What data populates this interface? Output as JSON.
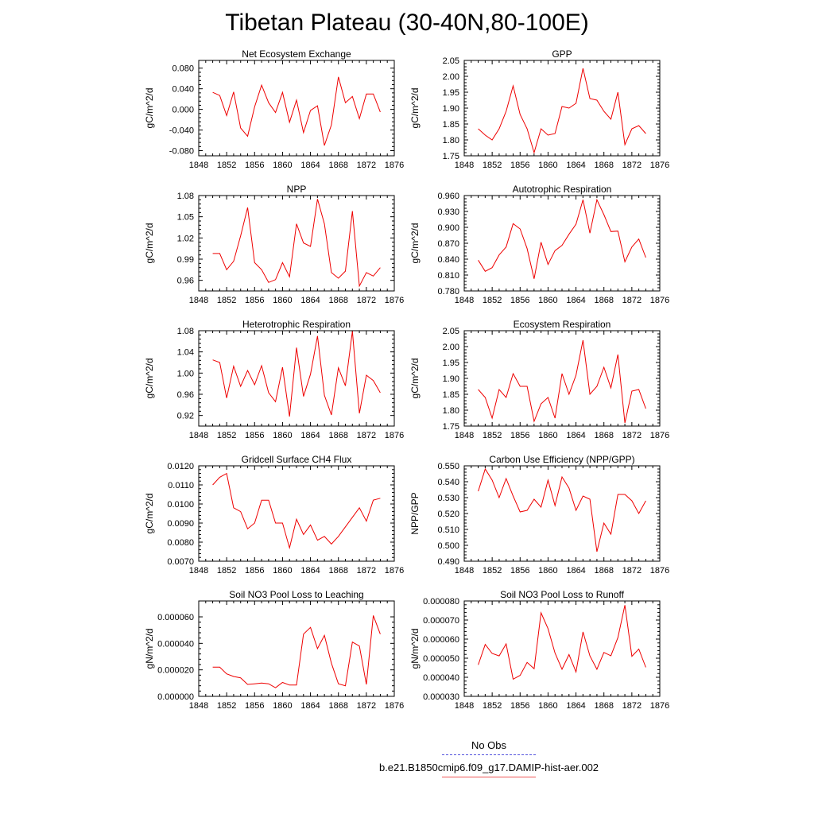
{
  "page": {
    "title": "Tibetan Plateau (30-40N,80-100E)"
  },
  "legend": {
    "obs_label": "No Obs",
    "model_label": "b.e21.B1850cmip6.f09_g17.DAMIP-hist-aer.002",
    "obs_color": "#5555dd",
    "model_color": "#ee0000"
  },
  "chart_data": [
    {
      "type": "line",
      "title": "Net Ecosystem Exchange",
      "ylabel": "gC/m^2/d",
      "xlim": [
        1848,
        1876
      ],
      "xticks": [
        "1848",
        "1852",
        "1856",
        "1860",
        "1864",
        "1868",
        "1872",
        "1876"
      ],
      "ylim": [
        -0.09,
        0.095
      ],
      "yticks": [
        {
          "v": -0.08,
          "label": "-0.080"
        },
        {
          "v": -0.04,
          "label": "-0.040"
        },
        {
          "v": 0.0,
          "label": "0.000"
        },
        {
          "v": 0.04,
          "label": "0.040"
        },
        {
          "v": 0.08,
          "label": "0.080"
        }
      ],
      "x": [
        1850,
        1851,
        1852,
        1853,
        1854,
        1855,
        1856,
        1857,
        1858,
        1859,
        1860,
        1861,
        1862,
        1863,
        1864,
        1865,
        1866,
        1867,
        1868,
        1869,
        1870,
        1871,
        1872,
        1873,
        1874
      ],
      "series": [
        {
          "color": "#ee0000",
          "values": [
            0.033,
            0.027,
            -0.012,
            0.034,
            -0.036,
            -0.052,
            0.005,
            0.047,
            0.013,
            -0.006,
            0.033,
            -0.025,
            0.018,
            -0.045,
            -0.002,
            0.007,
            -0.07,
            -0.03,
            0.063,
            0.013,
            0.025,
            -0.018,
            0.03,
            0.03,
            -0.005
          ]
        }
      ]
    },
    {
      "type": "line",
      "title": "GPP",
      "ylabel": "gC/m^2/d",
      "xlim": [
        1848,
        1876
      ],
      "xticks": [
        "1848",
        "1852",
        "1856",
        "1860",
        "1864",
        "1868",
        "1872",
        "1876"
      ],
      "ylim": [
        1.75,
        2.05
      ],
      "yticks": [
        {
          "v": 1.75,
          "label": "1.75"
        },
        {
          "v": 1.8,
          "label": "1.80"
        },
        {
          "v": 1.85,
          "label": "1.85"
        },
        {
          "v": 1.9,
          "label": "1.90"
        },
        {
          "v": 1.95,
          "label": "1.95"
        },
        {
          "v": 2.0,
          "label": "2.00"
        },
        {
          "v": 2.05,
          "label": "2.05"
        }
      ],
      "x": [
        1850,
        1851,
        1852,
        1853,
        1854,
        1855,
        1856,
        1857,
        1858,
        1859,
        1860,
        1861,
        1862,
        1863,
        1864,
        1865,
        1866,
        1867,
        1868,
        1869,
        1870,
        1871,
        1872,
        1873,
        1874
      ],
      "series": [
        {
          "color": "#ee0000",
          "values": [
            1.835,
            1.815,
            1.8,
            1.835,
            1.89,
            1.97,
            1.88,
            1.835,
            1.76,
            1.835,
            1.815,
            1.82,
            1.905,
            1.9,
            1.915,
            2.025,
            1.93,
            1.925,
            1.89,
            1.865,
            1.95,
            1.785,
            1.835,
            1.845,
            1.82
          ]
        }
      ]
    },
    {
      "type": "line",
      "title": "NPP",
      "ylabel": "gC/m^2/d",
      "xlim": [
        1848,
        1876
      ],
      "xticks": [
        "1848",
        "1852",
        "1856",
        "1860",
        "1864",
        "1868",
        "1872",
        "1876"
      ],
      "ylim": [
        0.945,
        1.08
      ],
      "yticks": [
        {
          "v": 0.96,
          "label": "0.96"
        },
        {
          "v": 0.99,
          "label": "0.99"
        },
        {
          "v": 1.02,
          "label": "1.02"
        },
        {
          "v": 1.05,
          "label": "1.05"
        },
        {
          "v": 1.08,
          "label": "1.08"
        }
      ],
      "x": [
        1850,
        1851,
        1852,
        1853,
        1854,
        1855,
        1856,
        1857,
        1858,
        1859,
        1860,
        1861,
        1862,
        1863,
        1864,
        1865,
        1866,
        1867,
        1868,
        1869,
        1870,
        1871,
        1872,
        1873,
        1874
      ],
      "series": [
        {
          "color": "#ee0000",
          "values": [
            0.998,
            0.998,
            0.975,
            0.987,
            1.023,
            1.063,
            0.985,
            0.975,
            0.957,
            0.961,
            0.985,
            0.965,
            1.04,
            1.013,
            1.008,
            1.075,
            1.04,
            0.971,
            0.963,
            0.973,
            1.058,
            0.952,
            0.971,
            0.966,
            0.978
          ]
        }
      ]
    },
    {
      "type": "line",
      "title": "Autotrophic Respiration",
      "ylabel": "gC/m^2/d",
      "xlim": [
        1848,
        1876
      ],
      "xticks": [
        "1848",
        "1852",
        "1856",
        "1860",
        "1864",
        "1868",
        "1872",
        "1876"
      ],
      "ylim": [
        0.78,
        0.96
      ],
      "yticks": [
        {
          "v": 0.78,
          "label": "0.780"
        },
        {
          "v": 0.81,
          "label": "0.810"
        },
        {
          "v": 0.84,
          "label": "0.840"
        },
        {
          "v": 0.87,
          "label": "0.870"
        },
        {
          "v": 0.9,
          "label": "0.900"
        },
        {
          "v": 0.93,
          "label": "0.930"
        },
        {
          "v": 0.96,
          "label": "0.960"
        }
      ],
      "x": [
        1850,
        1851,
        1852,
        1853,
        1854,
        1855,
        1856,
        1857,
        1858,
        1859,
        1860,
        1861,
        1862,
        1863,
        1864,
        1865,
        1866,
        1867,
        1868,
        1869,
        1870,
        1871,
        1872,
        1873,
        1874
      ],
      "series": [
        {
          "color": "#ee0000",
          "values": [
            0.838,
            0.817,
            0.824,
            0.848,
            0.863,
            0.907,
            0.897,
            0.86,
            0.803,
            0.872,
            0.83,
            0.856,
            0.866,
            0.887,
            0.906,
            0.952,
            0.889,
            0.952,
            0.924,
            0.892,
            0.893,
            0.835,
            0.863,
            0.878,
            0.843
          ]
        }
      ]
    },
    {
      "type": "line",
      "title": "Heterotrophic Respiration",
      "ylabel": "gC/m^2/d",
      "xlim": [
        1848,
        1876
      ],
      "xticks": [
        "1848",
        "1852",
        "1856",
        "1860",
        "1864",
        "1868",
        "1872",
        "1876"
      ],
      "ylim": [
        0.9,
        1.08
      ],
      "yticks": [
        {
          "v": 0.92,
          "label": "0.92"
        },
        {
          "v": 0.96,
          "label": "0.96"
        },
        {
          "v": 1.0,
          "label": "1.00"
        },
        {
          "v": 1.04,
          "label": "1.04"
        },
        {
          "v": 1.08,
          "label": "1.08"
        }
      ],
      "x": [
        1850,
        1851,
        1852,
        1853,
        1854,
        1855,
        1856,
        1857,
        1858,
        1859,
        1860,
        1861,
        1862,
        1863,
        1864,
        1865,
        1866,
        1867,
        1868,
        1869,
        1870,
        1871,
        1872,
        1873,
        1874
      ],
      "series": [
        {
          "color": "#ee0000",
          "values": [
            1.025,
            1.02,
            0.953,
            1.013,
            0.975,
            1.005,
            0.978,
            1.014,
            0.963,
            0.946,
            1.011,
            0.918,
            1.048,
            0.956,
            0.998,
            1.07,
            0.958,
            0.921,
            1.01,
            0.976,
            1.079,
            0.924,
            0.996,
            0.986,
            0.963
          ]
        }
      ]
    },
    {
      "type": "line",
      "title": "Ecosystem Respiration",
      "ylabel": "gC/m^2/d",
      "xlim": [
        1848,
        1876
      ],
      "xticks": [
        "1848",
        "1852",
        "1856",
        "1860",
        "1864",
        "1868",
        "1872",
        "1876"
      ],
      "ylim": [
        1.75,
        2.05
      ],
      "yticks": [
        {
          "v": 1.75,
          "label": "1.75"
        },
        {
          "v": 1.8,
          "label": "1.80"
        },
        {
          "v": 1.85,
          "label": "1.85"
        },
        {
          "v": 1.9,
          "label": "1.90"
        },
        {
          "v": 1.95,
          "label": "1.95"
        },
        {
          "v": 2.0,
          "label": "2.00"
        },
        {
          "v": 2.05,
          "label": "2.05"
        }
      ],
      "x": [
        1850,
        1851,
        1852,
        1853,
        1854,
        1855,
        1856,
        1857,
        1858,
        1859,
        1860,
        1861,
        1862,
        1863,
        1864,
        1865,
        1866,
        1867,
        1868,
        1869,
        1870,
        1871,
        1872,
        1873,
        1874
      ],
      "series": [
        {
          "color": "#ee0000",
          "values": [
            1.865,
            1.84,
            1.775,
            1.865,
            1.84,
            1.915,
            1.875,
            1.875,
            1.765,
            1.82,
            1.84,
            1.775,
            1.915,
            1.85,
            1.91,
            2.02,
            1.85,
            1.875,
            1.935,
            1.87,
            1.975,
            1.76,
            1.86,
            1.865,
            1.805
          ]
        }
      ]
    },
    {
      "type": "line",
      "title": "Gridcell Surface CH4 Flux",
      "ylabel": "gC/m^2/d",
      "xlim": [
        1848,
        1876
      ],
      "xticks": [
        "1848",
        "1852",
        "1856",
        "1860",
        "1864",
        "1868",
        "1872",
        "1876"
      ],
      "ylim": [
        0.007,
        0.012
      ],
      "yticks": [
        {
          "v": 0.007,
          "label": "0.0070"
        },
        {
          "v": 0.008,
          "label": "0.0080"
        },
        {
          "v": 0.009,
          "label": "0.0090"
        },
        {
          "v": 0.01,
          "label": "0.0100"
        },
        {
          "v": 0.011,
          "label": "0.0110"
        },
        {
          "v": 0.012,
          "label": "0.0120"
        }
      ],
      "x": [
        1850,
        1851,
        1852,
        1853,
        1854,
        1855,
        1856,
        1857,
        1858,
        1859,
        1860,
        1861,
        1862,
        1863,
        1864,
        1865,
        1866,
        1867,
        1868,
        1869,
        1870,
        1871,
        1872,
        1873,
        1874
      ],
      "series": [
        {
          "color": "#ee0000",
          "values": [
            0.011,
            0.0114,
            0.0116,
            0.0098,
            0.0096,
            0.0087,
            0.009,
            0.0102,
            0.0102,
            0.009,
            0.009,
            0.0077,
            0.0092,
            0.0084,
            0.0089,
            0.0081,
            0.0083,
            0.0079,
            0.0083,
            0.0088,
            0.0093,
            0.0098,
            0.0091,
            0.0102,
            0.0103
          ]
        }
      ]
    },
    {
      "type": "line",
      "title": "Carbon Use Efficiency (NPP/GPP)",
      "ylabel": "NPP/GPP",
      "xlim": [
        1848,
        1876
      ],
      "xticks": [
        "1848",
        "1852",
        "1856",
        "1860",
        "1864",
        "1868",
        "1872",
        "1876"
      ],
      "ylim": [
        0.49,
        0.55
      ],
      "yticks": [
        {
          "v": 0.49,
          "label": "0.490"
        },
        {
          "v": 0.5,
          "label": "0.500"
        },
        {
          "v": 0.51,
          "label": "0.510"
        },
        {
          "v": 0.52,
          "label": "0.520"
        },
        {
          "v": 0.53,
          "label": "0.530"
        },
        {
          "v": 0.54,
          "label": "0.540"
        },
        {
          "v": 0.55,
          "label": "0.550"
        }
      ],
      "x": [
        1850,
        1851,
        1852,
        1853,
        1854,
        1855,
        1856,
        1857,
        1858,
        1859,
        1860,
        1861,
        1862,
        1863,
        1864,
        1865,
        1866,
        1867,
        1868,
        1869,
        1870,
        1871,
        1872,
        1873,
        1874
      ],
      "series": [
        {
          "color": "#ee0000",
          "values": [
            0.534,
            0.548,
            0.541,
            0.53,
            0.542,
            0.531,
            0.521,
            0.522,
            0.529,
            0.524,
            0.541,
            0.525,
            0.543,
            0.536,
            0.522,
            0.531,
            0.529,
            0.496,
            0.514,
            0.507,
            0.532,
            0.532,
            0.528,
            0.52,
            0.528
          ]
        }
      ]
    },
    {
      "type": "line",
      "title": "Soil NO3 Pool Loss to Leaching",
      "ylabel": "gN/m^2/d",
      "xlim": [
        1848,
        1876
      ],
      "xticks": [
        "1848",
        "1852",
        "1856",
        "1860",
        "1864",
        "1868",
        "1872",
        "1876"
      ],
      "ylim": [
        0.0,
        7.2e-05
      ],
      "yticks": [
        {
          "v": 0.0,
          "label": "0.000000"
        },
        {
          "v": 2e-05,
          "label": "0.000020"
        },
        {
          "v": 4e-05,
          "label": "0.000040"
        },
        {
          "v": 6e-05,
          "label": "0.000060"
        }
      ],
      "x": [
        1850,
        1851,
        1852,
        1853,
        1854,
        1855,
        1856,
        1857,
        1858,
        1859,
        1860,
        1861,
        1862,
        1863,
        1864,
        1865,
        1866,
        1867,
        1868,
        1869,
        1870,
        1871,
        1872,
        1873,
        1874
      ],
      "series": [
        {
          "color": "#ee0000",
          "values": [
            2.2e-05,
            2.2e-05,
            1.7e-05,
            1.5e-05,
            1.4e-05,
            9e-06,
            9.5e-06,
            1e-05,
            9.5e-06,
            6.5e-06,
            1.05e-05,
            8.5e-06,
            8.5e-06,
            4.7e-05,
            5.2e-05,
            3.6e-05,
            4.6e-05,
            2.5e-05,
            9.5e-06,
            8e-06,
            4.1e-05,
            3.8e-05,
            9e-06,
            6.1e-05,
            4.7e-05
          ]
        }
      ]
    },
    {
      "type": "line",
      "title": "Soil NO3 Pool Loss to Runoff",
      "ylabel": "gN/m^2/d",
      "xlim": [
        1848,
        1876
      ],
      "xticks": [
        "1848",
        "1852",
        "1856",
        "1860",
        "1864",
        "1868",
        "1872",
        "1876"
      ],
      "ylim": [
        3e-05,
        8e-05
      ],
      "yticks": [
        {
          "v": 3e-05,
          "label": "0.000030"
        },
        {
          "v": 4e-05,
          "label": "0.000040"
        },
        {
          "v": 5e-05,
          "label": "0.000050"
        },
        {
          "v": 6e-05,
          "label": "0.000060"
        },
        {
          "v": 7e-05,
          "label": "0.000070"
        },
        {
          "v": 8e-05,
          "label": "0.000080"
        }
      ],
      "x": [
        1850,
        1851,
        1852,
        1853,
        1854,
        1855,
        1856,
        1857,
        1858,
        1859,
        1860,
        1861,
        1862,
        1863,
        1864,
        1865,
        1866,
        1867,
        1868,
        1869,
        1870,
        1871,
        1872,
        1873,
        1874
      ],
      "series": [
        {
          "color": "#ee0000",
          "values": [
            4.65e-05,
            5.72e-05,
            5.25e-05,
            5.12e-05,
            5.75e-05,
            3.9e-05,
            4.1e-05,
            4.78e-05,
            4.45e-05,
            7.38e-05,
            6.55e-05,
            5.27e-05,
            4.42e-05,
            5.19e-05,
            4.28e-05,
            6.38e-05,
            5.12e-05,
            4.42e-05,
            5.3e-05,
            5.13e-05,
            6.08e-05,
            7.78e-05,
            5.1e-05,
            5.48e-05,
            4.52e-05
          ]
        }
      ]
    }
  ]
}
